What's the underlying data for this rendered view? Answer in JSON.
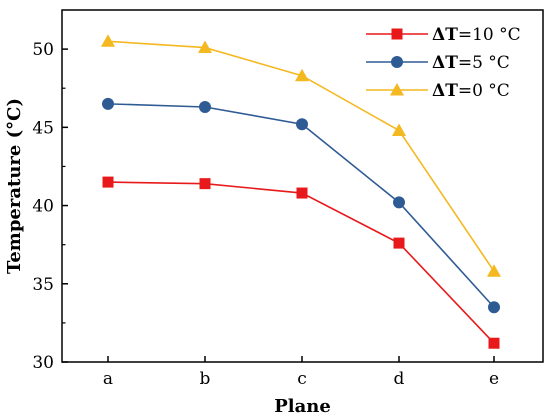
{
  "chart_data": {
    "type": "line",
    "title": "",
    "xlabel": "Plane",
    "ylabel": "Temperature (°C)",
    "categories": [
      "a",
      "b",
      "c",
      "d",
      "e"
    ],
    "ylim": [
      30,
      52.5
    ],
    "yticks": [
      30,
      35,
      40,
      45,
      50
    ],
    "grid": false,
    "legend_position": "top-right",
    "series": [
      {
        "name": "ΔT=10 °C",
        "legend_prefix": "ΔT",
        "legend_suffix": "=10 °C",
        "color": "#e8191a",
        "marker": "square",
        "values": [
          41.5,
          41.4,
          40.8,
          37.6,
          31.2
        ]
      },
      {
        "name": "ΔT=5 °C",
        "legend_prefix": "ΔT",
        "legend_suffix": "=5 °C",
        "color": "#2f5b94",
        "marker": "circle",
        "values": [
          46.5,
          46.3,
          45.2,
          40.2,
          33.5
        ]
      },
      {
        "name": "ΔT=0 °C",
        "legend_prefix": "ΔT",
        "legend_suffix": "=0 °C",
        "color": "#f4b821",
        "marker": "triangle",
        "values": [
          50.5,
          50.1,
          48.3,
          44.8,
          35.8
        ]
      }
    ]
  }
}
